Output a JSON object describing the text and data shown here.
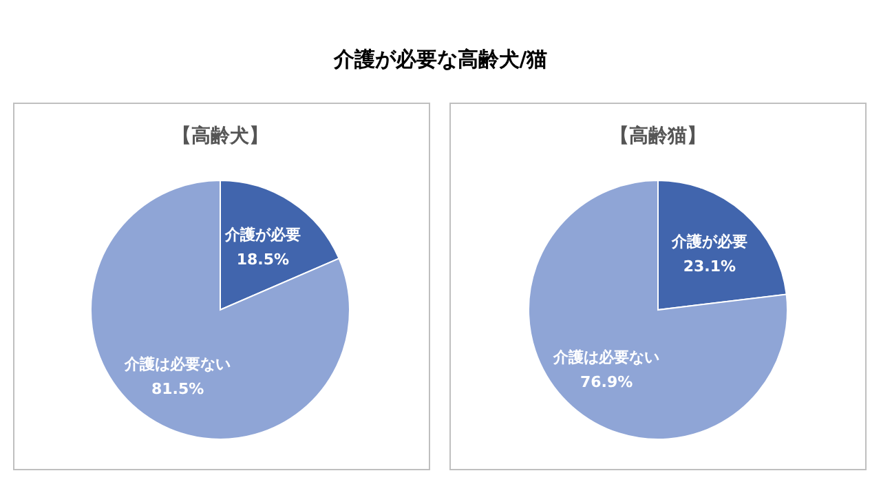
{
  "chart_data": [
    {
      "type": "pie",
      "title": "介護が必要な高齢犬/猫",
      "subtitle": "【高齢犬】",
      "categories": [
        "介護が必要",
        "介護は必要ない"
      ],
      "values": [
        18.5,
        81.5
      ],
      "value_labels": [
        "18.5%",
        "81.5%"
      ],
      "colors": [
        "#4165ad",
        "#8fa5d6"
      ]
    },
    {
      "type": "pie",
      "title": "【高齢猫】",
      "categories": [
        "介護が必要",
        "介護は必要ない"
      ],
      "values": [
        23.1,
        76.9
      ],
      "value_labels": [
        "23.1%",
        "76.9%"
      ],
      "colors": [
        "#4165ad",
        "#8fa5d6"
      ]
    }
  ]
}
